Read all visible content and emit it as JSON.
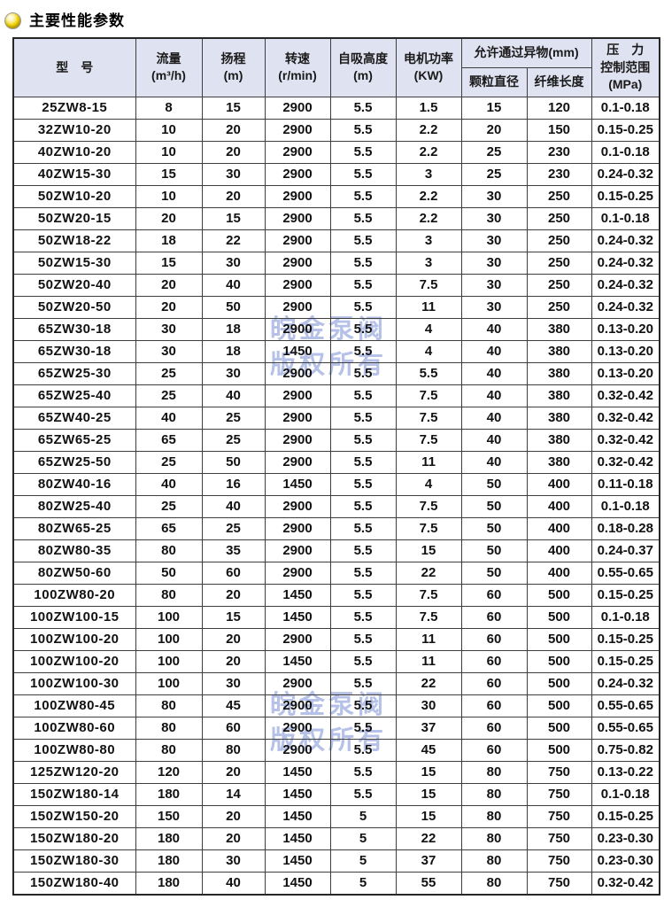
{
  "page": {
    "title": "主要性能参数"
  },
  "watermark": {
    "line1": "皖金泵阀",
    "line2": "版权所有"
  },
  "colors": {
    "header_bg": "#dfe2f0",
    "border": "#3e3e3e",
    "watermark": "#b5c1e6",
    "bullet_yellow": "#f3d600"
  },
  "table": {
    "header": {
      "model": "型　号",
      "flow_l1": "流量",
      "flow_l2": "(m³/h)",
      "head_l1": "扬程",
      "head_l2": "(m)",
      "speed_l1": "转速",
      "speed_l2": "(r/min)",
      "suction_l1": "自吸高度",
      "suction_l2": "(m)",
      "power_l1": "电机功率",
      "power_l2": "(KW)",
      "foreign_group": "允许通过异物(mm)",
      "particle": "颗粒直径",
      "fiber": "纤维长度",
      "pressure_l1": "压　力",
      "pressure_l2": "控制范围",
      "pressure_l3": "(MPa)"
    },
    "col_keys": [
      "model",
      "flow",
      "head",
      "speed",
      "suction",
      "power",
      "particle",
      "fiber",
      "pressure"
    ],
    "rows": [
      [
        "25ZW8-15",
        "8",
        "15",
        "2900",
        "5.5",
        "1.5",
        "15",
        "120",
        "0.1-0.18"
      ],
      [
        "32ZW10-20",
        "10",
        "20",
        "2900",
        "5.5",
        "2.2",
        "20",
        "150",
        "0.15-0.25"
      ],
      [
        "40ZW10-20",
        "10",
        "20",
        "2900",
        "5.5",
        "2.2",
        "25",
        "230",
        "0.1-0.18"
      ],
      [
        "40ZW15-30",
        "15",
        "30",
        "2900",
        "5.5",
        "3",
        "25",
        "230",
        "0.24-0.32"
      ],
      [
        "50ZW10-20",
        "10",
        "20",
        "2900",
        "5.5",
        "2.2",
        "30",
        "250",
        "0.15-0.25"
      ],
      [
        "50ZW20-15",
        "20",
        "15",
        "2900",
        "5.5",
        "2.2",
        "30",
        "250",
        "0.1-0.18"
      ],
      [
        "50ZW18-22",
        "18",
        "22",
        "2900",
        "5.5",
        "3",
        "30",
        "250",
        "0.24-0.32"
      ],
      [
        "50ZW15-30",
        "15",
        "30",
        "2900",
        "5.5",
        "3",
        "30",
        "250",
        "0.24-0.32"
      ],
      [
        "50ZW20-40",
        "20",
        "40",
        "2900",
        "5.5",
        "7.5",
        "30",
        "250",
        "0.24-0.32"
      ],
      [
        "50ZW20-50",
        "20",
        "50",
        "2900",
        "5.5",
        "11",
        "30",
        "250",
        "0.24-0.32"
      ],
      [
        "65ZW30-18",
        "30",
        "18",
        "2900",
        "5.5",
        "4",
        "40",
        "380",
        "0.13-0.20"
      ],
      [
        "65ZW30-18",
        "30",
        "18",
        "1450",
        "5.5",
        "4",
        "40",
        "380",
        "0.13-0.20"
      ],
      [
        "65ZW25-30",
        "25",
        "30",
        "2900",
        "5.5",
        "5.5",
        "40",
        "380",
        "0.13-0.20"
      ],
      [
        "65ZW25-40",
        "25",
        "40",
        "2900",
        "5.5",
        "7.5",
        "40",
        "380",
        "0.32-0.42"
      ],
      [
        "65ZW40-25",
        "40",
        "25",
        "2900",
        "5.5",
        "7.5",
        "40",
        "380",
        "0.32-0.42"
      ],
      [
        "65ZW65-25",
        "65",
        "25",
        "2900",
        "5.5",
        "7.5",
        "40",
        "380",
        "0.32-0.42"
      ],
      [
        "65ZW25-50",
        "25",
        "50",
        "2900",
        "5.5",
        "11",
        "40",
        "380",
        "0.32-0.42"
      ],
      [
        "80ZW40-16",
        "40",
        "16",
        "1450",
        "5.5",
        "4",
        "50",
        "400",
        "0.11-0.18"
      ],
      [
        "80ZW25-40",
        "25",
        "40",
        "2900",
        "5.5",
        "7.5",
        "50",
        "400",
        "0.1-0.18"
      ],
      [
        "80ZW65-25",
        "65",
        "25",
        "2900",
        "5.5",
        "7.5",
        "50",
        "400",
        "0.18-0.28"
      ],
      [
        "80ZW80-35",
        "80",
        "35",
        "2900",
        "5.5",
        "15",
        "50",
        "400",
        "0.24-0.37"
      ],
      [
        "80ZW50-60",
        "50",
        "60",
        "2900",
        "5.5",
        "22",
        "50",
        "400",
        "0.55-0.65"
      ],
      [
        "100ZW80-20",
        "80",
        "20",
        "1450",
        "5.5",
        "7.5",
        "60",
        "500",
        "0.15-0.25"
      ],
      [
        "100ZW100-15",
        "100",
        "15",
        "1450",
        "5.5",
        "7.5",
        "60",
        "500",
        "0.1-0.18"
      ],
      [
        "100ZW100-20",
        "100",
        "20",
        "2900",
        "5.5",
        "11",
        "60",
        "500",
        "0.15-0.25"
      ],
      [
        "100ZW100-20",
        "100",
        "20",
        "1450",
        "5.5",
        "11",
        "60",
        "500",
        "0.15-0.25"
      ],
      [
        "100ZW100-30",
        "100",
        "30",
        "2900",
        "5.5",
        "22",
        "60",
        "500",
        "0.24-0.32"
      ],
      [
        "100ZW80-45",
        "80",
        "45",
        "2900",
        "5.5",
        "30",
        "60",
        "500",
        "0.55-0.65"
      ],
      [
        "100ZW80-60",
        "80",
        "60",
        "2900",
        "5.5",
        "37",
        "60",
        "500",
        "0.55-0.65"
      ],
      [
        "100ZW80-80",
        "80",
        "80",
        "2900",
        "5.5",
        "45",
        "60",
        "500",
        "0.75-0.82"
      ],
      [
        "125ZW120-20",
        "120",
        "20",
        "1450",
        "5.5",
        "15",
        "80",
        "750",
        "0.13-0.22"
      ],
      [
        "150ZW180-14",
        "180",
        "14",
        "1450",
        "5.5",
        "15",
        "80",
        "750",
        "0.1-0.18"
      ],
      [
        "150ZW150-20",
        "150",
        "20",
        "1450",
        "5",
        "15",
        "80",
        "750",
        "0.15-0.25"
      ],
      [
        "150ZW180-20",
        "180",
        "20",
        "1450",
        "5",
        "22",
        "80",
        "750",
        "0.23-0.30"
      ],
      [
        "150ZW180-30",
        "180",
        "30",
        "1450",
        "5",
        "37",
        "80",
        "750",
        "0.23-0.30"
      ],
      [
        "150ZW180-40",
        "180",
        "40",
        "1450",
        "5",
        "55",
        "80",
        "750",
        "0.32-0.42"
      ]
    ]
  }
}
